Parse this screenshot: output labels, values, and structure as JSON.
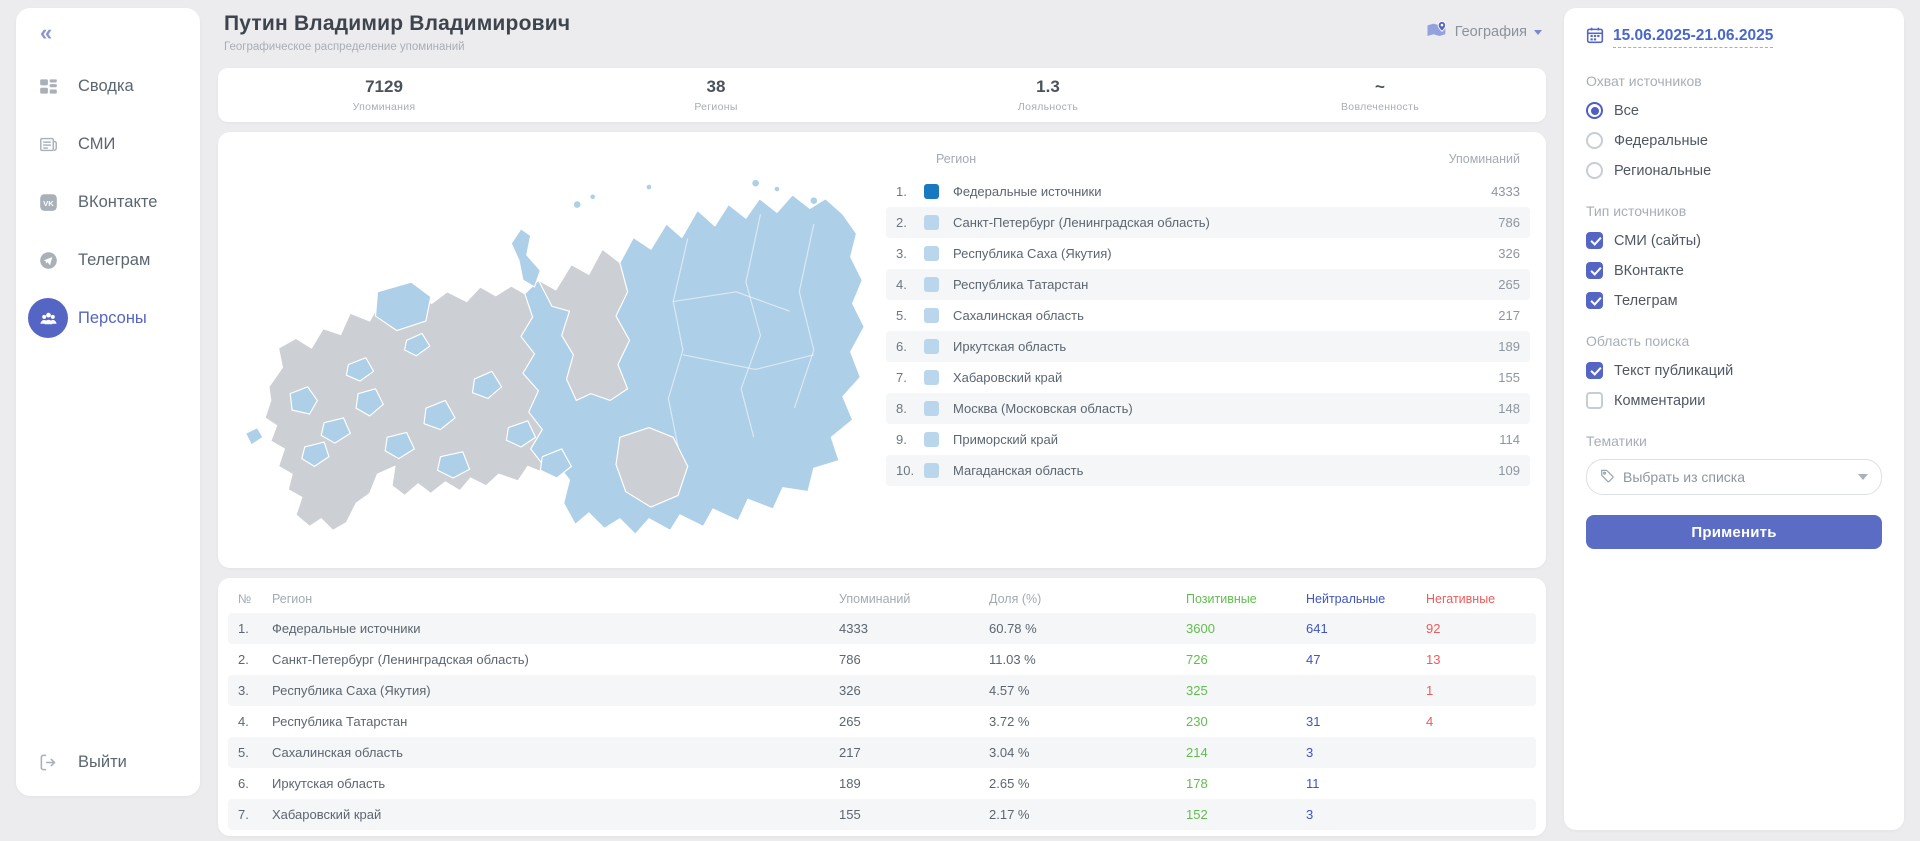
{
  "colors": {
    "accent": "#5565c3",
    "link": "#4a67c8",
    "positive": "#62bd4f",
    "neutral": "#3e55c0",
    "negative": "#f05a5a",
    "map_region_active": "#aecfe8",
    "map_region_inactive": "#cccfd3",
    "chip_primary": "#1879c0",
    "chip_secondary": "#b9d6ec"
  },
  "sidebar": {
    "collapse_icon": "«",
    "items": [
      {
        "key": "summary",
        "icon": "dashboard-icon",
        "label": "Сводка",
        "active": false
      },
      {
        "key": "smi",
        "icon": "news-icon",
        "label": "СМИ",
        "active": false
      },
      {
        "key": "vkontakte",
        "icon": "vk-icon",
        "label": "ВКонтакте",
        "active": false
      },
      {
        "key": "telegram",
        "icon": "telegram-icon",
        "label": "Телеграм",
        "active": false
      },
      {
        "key": "persons",
        "icon": "persons-icon",
        "label": "Персоны",
        "active": true
      }
    ],
    "logout": {
      "icon": "logout-icon",
      "label": "Выйти"
    }
  },
  "header": {
    "title": "Путин Владимир Владимирович",
    "subtitle": "Географическое распределение упоминаний",
    "view_selector": {
      "icon": "map-icon",
      "label": "География"
    }
  },
  "stats": [
    {
      "key": "mentions",
      "value": "7129",
      "label": "Упоминания"
    },
    {
      "key": "regions",
      "value": "38",
      "label": "Регионы"
    },
    {
      "key": "loyalty",
      "value": "1.3",
      "label": "Лояльность"
    },
    {
      "key": "engagement",
      "value": "~",
      "label": "Вовлеченность"
    }
  ],
  "region_list": {
    "col_region": "Регион",
    "col_mentions": "Упоминаний",
    "rows": [
      {
        "rank": "1.",
        "region": "Федеральные источники",
        "mentions": "4333",
        "chip": "primary"
      },
      {
        "rank": "2.",
        "region": "Санкт-Петербург (Ленинградская область)",
        "mentions": "786",
        "chip": "secondary"
      },
      {
        "rank": "3.",
        "region": "Республика Саха (Якутия)",
        "mentions": "326",
        "chip": "secondary"
      },
      {
        "rank": "4.",
        "region": "Республика Татарстан",
        "mentions": "265",
        "chip": "secondary"
      },
      {
        "rank": "5.",
        "region": "Сахалинская область",
        "mentions": "217",
        "chip": "secondary"
      },
      {
        "rank": "6.",
        "region": "Иркутская область",
        "mentions": "189",
        "chip": "secondary"
      },
      {
        "rank": "7.",
        "region": "Хабаровский край",
        "mentions": "155",
        "chip": "secondary"
      },
      {
        "rank": "8.",
        "region": "Москва (Московская область)",
        "mentions": "148",
        "chip": "secondary"
      },
      {
        "rank": "9.",
        "region": "Приморский край",
        "mentions": "114",
        "chip": "secondary"
      },
      {
        "rank": "10.",
        "region": "Магаданская область",
        "mentions": "109",
        "chip": "secondary"
      }
    ]
  },
  "table": {
    "headers": {
      "num": "№",
      "region": "Регион",
      "mentions": "Упоминаний",
      "share": "Доля (%)",
      "positive": "Позитивные",
      "neutral": "Нейтральные",
      "negative": "Негативные"
    },
    "rows": [
      {
        "num": "1.",
        "region": "Федеральные источники",
        "mentions": "4333",
        "share": "60.78 %",
        "positive": "3600",
        "neutral": "641",
        "negative": "92"
      },
      {
        "num": "2.",
        "region": "Санкт-Петербург (Ленинградская область)",
        "mentions": "786",
        "share": "11.03 %",
        "positive": "726",
        "neutral": "47",
        "negative": "13"
      },
      {
        "num": "3.",
        "region": "Республика Саха (Якутия)",
        "mentions": "326",
        "share": "4.57 %",
        "positive": "325",
        "neutral": "",
        "negative": "1"
      },
      {
        "num": "4.",
        "region": "Республика Татарстан",
        "mentions": "265",
        "share": "3.72 %",
        "positive": "230",
        "neutral": "31",
        "negative": "4"
      },
      {
        "num": "5.",
        "region": "Сахалинская область",
        "mentions": "217",
        "share": "3.04 %",
        "positive": "214",
        "neutral": "3",
        "negative": ""
      },
      {
        "num": "6.",
        "region": "Иркутская область",
        "mentions": "189",
        "share": "2.65 %",
        "positive": "178",
        "neutral": "11",
        "negative": ""
      },
      {
        "num": "7.",
        "region": "Хабаровский край",
        "mentions": "155",
        "share": "2.17 %",
        "positive": "152",
        "neutral": "3",
        "negative": ""
      }
    ]
  },
  "filters": {
    "date_range": "15.06.2025-21.06.2025",
    "calendar_icon": "calendar-icon",
    "coverage": {
      "label": "Охват источников",
      "options": [
        {
          "key": "all",
          "label": "Все",
          "selected": true
        },
        {
          "key": "federal",
          "label": "Федеральные",
          "selected": false
        },
        {
          "key": "regional",
          "label": "Региональные",
          "selected": false
        }
      ]
    },
    "source_types": {
      "label": "Тип источников",
      "options": [
        {
          "key": "smi",
          "label": "СМИ (сайты)",
          "checked": true
        },
        {
          "key": "vk",
          "label": "ВКонтакте",
          "checked": true
        },
        {
          "key": "telegram",
          "label": "Телеграм",
          "checked": true
        }
      ]
    },
    "search_scope": {
      "label": "Область поиска",
      "options": [
        {
          "key": "text",
          "label": "Текст публикаций",
          "checked": true
        },
        {
          "key": "comments",
          "label": "Комментарии",
          "checked": false
        }
      ]
    },
    "topics": {
      "label": "Тематики",
      "icon": "tag-icon",
      "placeholder": "Выбрать из списка"
    },
    "apply_label": "Применить"
  }
}
